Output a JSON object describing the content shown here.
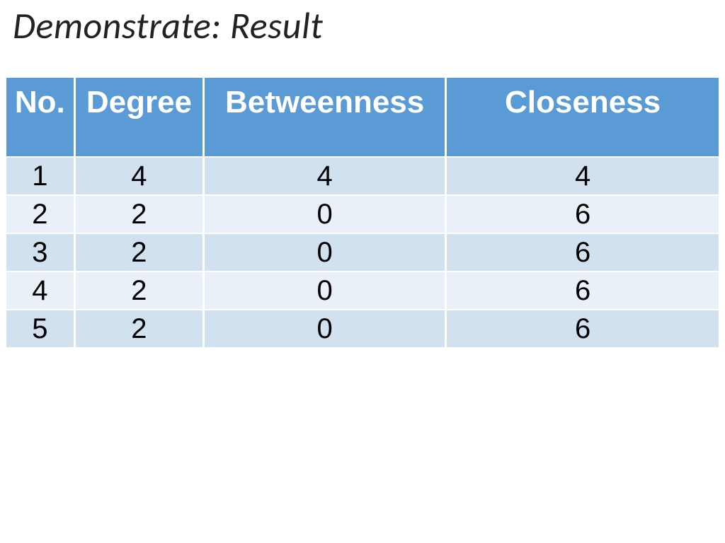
{
  "title": "Demonstrate: Result",
  "table": {
    "type": "table",
    "header_bg": "#5b9bd5",
    "header_color": "#ffffff",
    "row_alt_colors": [
      "#d2e1ef",
      "#eaf0f8"
    ],
    "header_fontsize_pt": 33,
    "cell_fontsize_pt": 30,
    "col_widths_pct": [
      9.5,
      18,
      34,
      38.5
    ],
    "columns": [
      "No.",
      "Degree",
      "Betweenness",
      "Closeness"
    ],
    "rows": [
      [
        "1",
        "4",
        "4",
        "4"
      ],
      [
        "2",
        "2",
        "0",
        "6"
      ],
      [
        "3",
        "2",
        "0",
        "6"
      ],
      [
        "4",
        "2",
        "0",
        "6"
      ],
      [
        "5",
        "2",
        "0",
        "6"
      ]
    ]
  }
}
